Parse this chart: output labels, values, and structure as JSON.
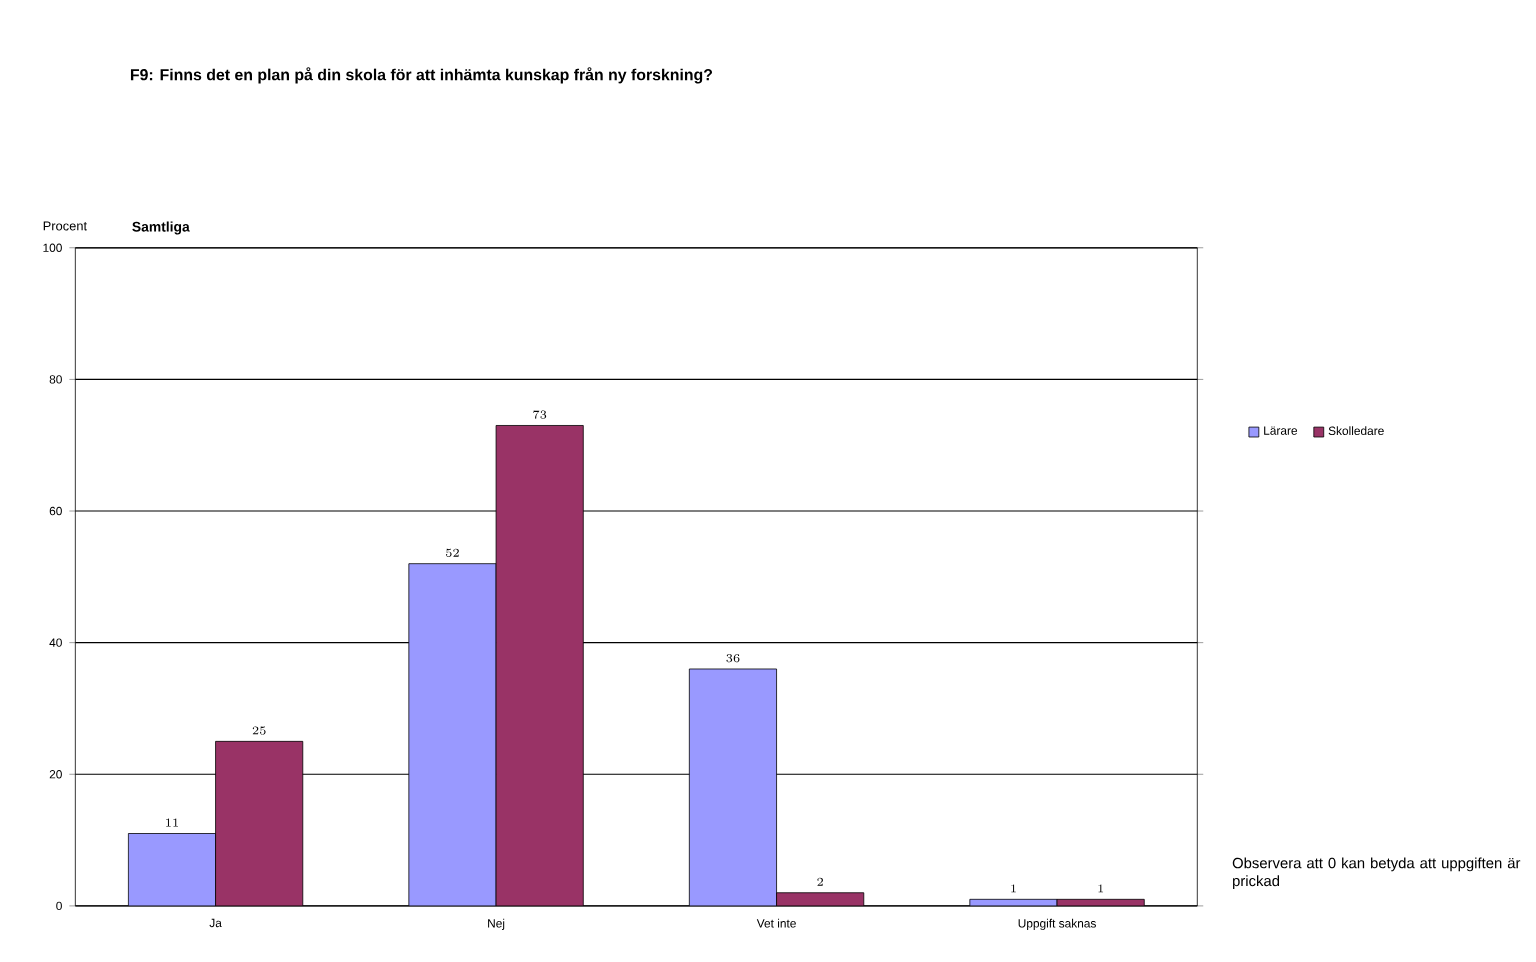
{
  "chart_data": {
    "type": "bar",
    "title": "F9: Finns det en plan på din skola för att inhämta kunskap från ny forskning?",
    "subtitle": "Samtliga",
    "ylabel": "Procent",
    "categories": [
      "Ja",
      "Nej",
      "Vet inte",
      "Uppgift saknas"
    ],
    "series": [
      {
        "name": "Lärare",
        "color": "#9999ff",
        "values": [
          11,
          52,
          36,
          1
        ]
      },
      {
        "name": "Skolledare",
        "color": "#993366",
        "values": [
          25,
          73,
          2,
          1
        ]
      }
    ],
    "ylim": [
      0,
      100
    ],
    "yticks": [
      0,
      20,
      40,
      60,
      80,
      100
    ],
    "grid": "y",
    "legend": "right",
    "data_labels": true,
    "annotations": [
      "Observera att 0 kan betyda att uppgiften är prickad"
    ]
  }
}
